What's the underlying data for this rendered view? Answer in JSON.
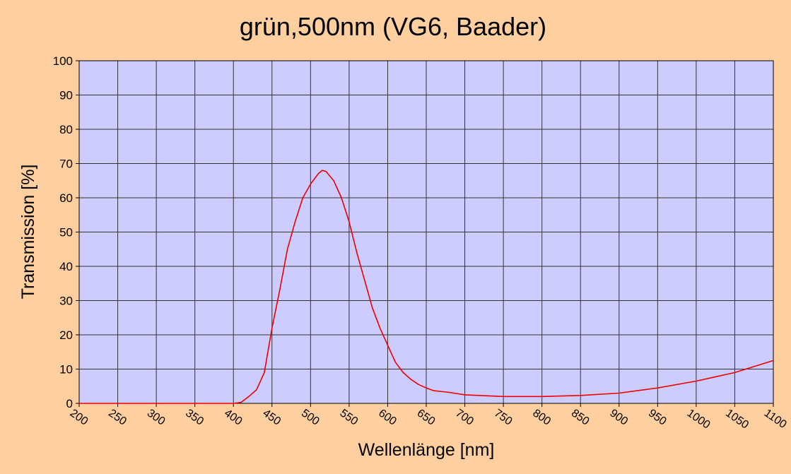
{
  "chart_data": {
    "type": "line",
    "title": "grün,500nm (VG6, Baader)",
    "x_label": "Wellenlänge [nm]",
    "y_label": "Transmission [%]",
    "x": [
      200,
      300,
      400,
      410,
      420,
      430,
      440,
      450,
      460,
      470,
      480,
      490,
      500,
      510,
      515,
      520,
      530,
      540,
      550,
      560,
      570,
      580,
      590,
      600,
      610,
      620,
      630,
      640,
      650,
      660,
      680,
      700,
      750,
      800,
      850,
      900,
      950,
      1000,
      1050,
      1100
    ],
    "series": [
      {
        "name": "Transmission",
        "color": "#ee0000",
        "values": [
          0,
          0,
          0,
          0.3,
          2,
          4,
          9,
          22,
          33,
          45,
          53,
          60,
          64,
          67,
          68,
          67.7,
          65,
          60,
          53,
          44,
          36,
          28,
          22,
          17,
          12,
          9,
          7,
          5.5,
          4.5,
          3.7,
          3.2,
          2.5,
          2.0,
          2.0,
          2.3,
          3,
          4.5,
          6.5,
          9,
          12.5
        ]
      }
    ],
    "xlim": [
      200,
      1100
    ],
    "ylim": [
      0,
      100
    ],
    "xticks": [
      200,
      250,
      300,
      350,
      400,
      450,
      500,
      550,
      600,
      650,
      700,
      750,
      800,
      850,
      900,
      950,
      1000,
      1050,
      1100
    ],
    "yticks": [
      0,
      10,
      20,
      30,
      40,
      50,
      60,
      70,
      80,
      90,
      100
    ],
    "grid": true
  }
}
